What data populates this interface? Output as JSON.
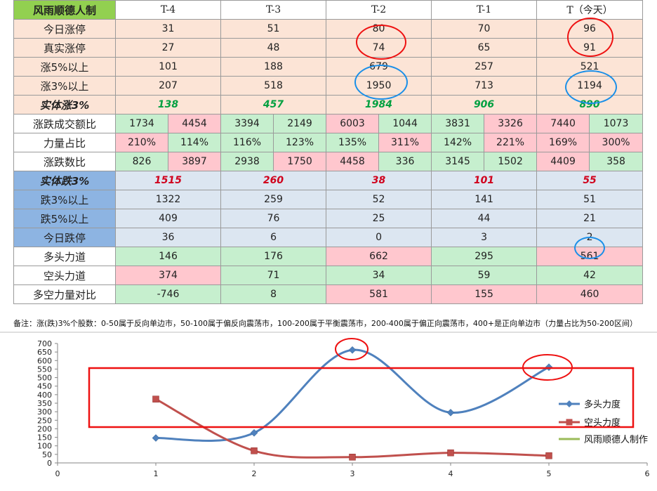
{
  "table": {
    "corner": "风雨顺德人制",
    "headers": [
      "T-4",
      "T-3",
      "T-2",
      "T-1",
      "T（今天）"
    ],
    "rows": [
      {
        "label": "今日涨停",
        "values": [
          "31",
          "51",
          "80",
          "70",
          "96"
        ],
        "bg": "peach"
      },
      {
        "label": "真实涨停",
        "values": [
          "27",
          "48",
          "74",
          "65",
          "91"
        ],
        "bg": "peach"
      },
      {
        "label": "涨5%以上",
        "values": [
          "101",
          "188",
          "679",
          "257",
          "521"
        ],
        "bg": "peach"
      },
      {
        "label": "涨3%以上",
        "values": [
          "207",
          "518",
          "1950",
          "713",
          "1194"
        ],
        "bg": "peach"
      },
      {
        "label": "实体涨3%",
        "values": [
          "138",
          "457",
          "1984",
          "906",
          "890"
        ],
        "bg": "peach",
        "style": "green-bi"
      },
      {
        "label": "涨跌成交额比",
        "pairs": [
          [
            "1734",
            "4454"
          ],
          [
            "3394",
            "2149"
          ],
          [
            "6003",
            "1044"
          ],
          [
            "3831",
            "3326"
          ],
          [
            "7440",
            "1073"
          ]
        ],
        "colors": [
          [
            "green",
            "pink"
          ],
          [
            "green",
            "green"
          ],
          [
            "pink",
            "green"
          ],
          [
            "green",
            "pink"
          ],
          [
            "pink",
            "green"
          ]
        ]
      },
      {
        "label": "力量占比",
        "pairs": [
          [
            "210%",
            "114%"
          ],
          [
            "116%",
            "123%"
          ],
          [
            "135%",
            "311%"
          ],
          [
            "142%",
            "221%"
          ],
          [
            "169%",
            "300%"
          ]
        ],
        "colors": [
          [
            "pink",
            "green"
          ],
          [
            "green",
            "green"
          ],
          [
            "green",
            "pink"
          ],
          [
            "green",
            "pink"
          ],
          [
            "pink",
            "pink"
          ]
        ]
      },
      {
        "label": "涨跌数比",
        "pairs": [
          [
            "826",
            "3897"
          ],
          [
            "2938",
            "1750"
          ],
          [
            "4458",
            "336"
          ],
          [
            "3145",
            "1502"
          ],
          [
            "4409",
            "358"
          ]
        ],
        "colors": [
          [
            "green",
            "pink"
          ],
          [
            "green",
            "pink"
          ],
          [
            "pink",
            "green"
          ],
          [
            "green",
            "green"
          ],
          [
            "pink",
            "green"
          ]
        ]
      },
      {
        "label": "实体跌3%",
        "values": [
          "1515",
          "260",
          "38",
          "101",
          "55"
        ],
        "bg": "blue",
        "style": "red-bi"
      },
      {
        "label": "跌3%以上",
        "values": [
          "1322",
          "259",
          "52",
          "141",
          "51"
        ],
        "bg": "blue"
      },
      {
        "label": "跌5%以上",
        "values": [
          "409",
          "76",
          "25",
          "44",
          "21"
        ],
        "bg": "blue"
      },
      {
        "label": "今日跌停",
        "values": [
          "36",
          "6",
          "0",
          "3",
          "2"
        ],
        "bg": "blue"
      },
      {
        "label": "多头力道",
        "values": [
          "146",
          "176",
          "662",
          "295",
          "561"
        ],
        "cellcolors": [
          "green",
          "green",
          "pink",
          "green",
          "pink"
        ]
      },
      {
        "label": "空头力道",
        "values": [
          "374",
          "71",
          "34",
          "59",
          "42"
        ],
        "cellcolors": [
          "pink",
          "green",
          "green",
          "green",
          "green"
        ]
      },
      {
        "label": "多空力量对比",
        "values": [
          "-746",
          "8",
          "581",
          "155",
          "460"
        ],
        "cellcolors": [
          "green",
          "green",
          "pink",
          "pink",
          "pink"
        ]
      }
    ]
  },
  "note": "备注：涨(跌)3%个股数：0-50属于反向单边市，50-100属于偏反向震荡市，100-200属于平衡震荡市，200-400属于偏正向震荡市，400+是正向单边市（力量占比为50-200区间）",
  "colors": {
    "bull": "#4f81bd",
    "bear": "#c0504d",
    "third": "#9bbb59",
    "annotation_red": "#ee1111",
    "annotation_blue": "#1a8fe8"
  },
  "chart_data": {
    "type": "line",
    "xlim": [
      0,
      6
    ],
    "ylim": [
      0,
      700
    ],
    "xticks": [
      0,
      1,
      2,
      3,
      4,
      5,
      6
    ],
    "yticks": [
      0,
      50,
      100,
      150,
      200,
      250,
      300,
      350,
      400,
      450,
      500,
      550,
      600,
      650,
      700
    ],
    "series": [
      {
        "name": "多头力度",
        "x": [
          1,
          2,
          3,
          4,
          5
        ],
        "values": [
          146,
          176,
          662,
          295,
          561
        ],
        "color": "#4f81bd",
        "marker": "diamond"
      },
      {
        "name": "空头力度",
        "x": [
          1,
          2,
          3,
          4,
          5
        ],
        "values": [
          374,
          71,
          34,
          59,
          42
        ],
        "color": "#c0504d",
        "marker": "square"
      },
      {
        "name": "风雨顺德人制作",
        "x": [],
        "values": [],
        "color": "#9bbb59",
        "marker": "none"
      }
    ],
    "legend": "right"
  }
}
